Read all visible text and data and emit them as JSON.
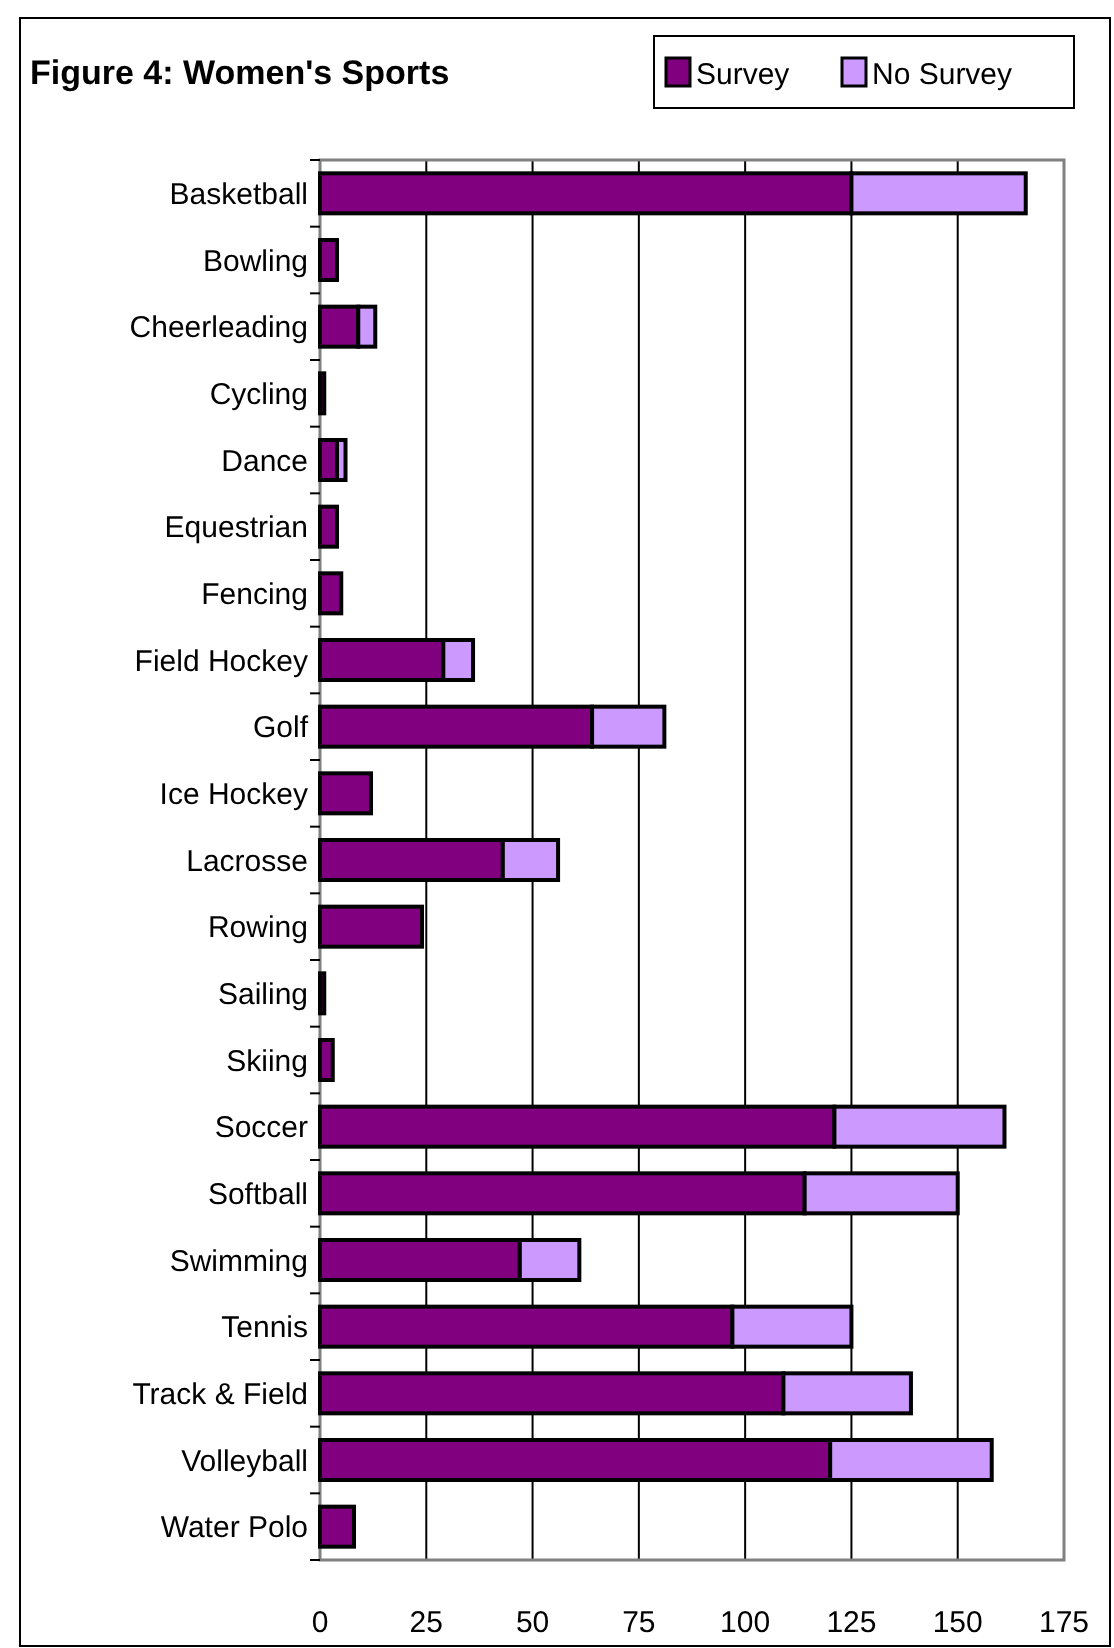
{
  "chart_data": {
    "type": "bar",
    "orientation": "horizontal",
    "stacked": true,
    "title": "Figure 4: Women's Sports",
    "categories": [
      "Basketball",
      "Bowling",
      "Cheerleading",
      "Cycling",
      "Dance",
      "Equestrian",
      "Fencing",
      "Field Hockey",
      "Golf",
      "Ice Hockey",
      "Lacrosse",
      "Rowing",
      "Sailing",
      "Skiing",
      "Soccer",
      "Softball",
      "Swimming",
      "Tennis",
      "Track & Field",
      "Volleyball",
      "Water Polo"
    ],
    "series": [
      {
        "name": "Survey",
        "color": "#800080",
        "values": [
          125,
          4,
          9,
          1,
          4,
          4,
          5,
          29,
          64,
          12,
          43,
          24,
          1,
          3,
          121,
          114,
          47,
          97,
          109,
          120,
          8
        ]
      },
      {
        "name": "No Survey",
        "color": "#cc99ff",
        "values": [
          41,
          0,
          4,
          0,
          2,
          0,
          0,
          7,
          17,
          0,
          13,
          0,
          0,
          0,
          40,
          36,
          14,
          28,
          30,
          38,
          0
        ]
      }
    ],
    "xlim": [
      0,
      175
    ],
    "xticks": [
      0,
      25,
      50,
      75,
      100,
      125,
      150,
      175
    ],
    "grid": "x",
    "legend": "top right"
  }
}
